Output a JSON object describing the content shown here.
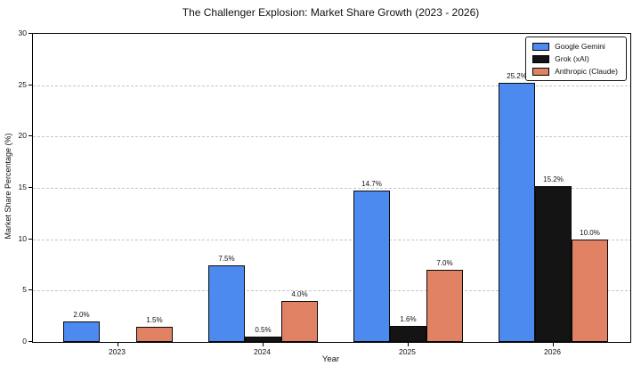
{
  "title": "The Challenger Explosion: Market Share Growth (2023 - 2026)",
  "chart_data": {
    "type": "bar",
    "title": "The Challenger Explosion: Market Share Growth (2023 - 2026)",
    "xlabel": "Year",
    "ylabel": "Market Share Percentage (%)",
    "categories": [
      "2023",
      "2024",
      "2025",
      "2026"
    ],
    "series": [
      {
        "name": "Google Gemini",
        "color": "#4c8af0",
        "values": [
          2.0,
          7.5,
          14.7,
          25.2
        ]
      },
      {
        "name": "Grok (xAI)",
        "color": "#141414",
        "values": [
          0.0,
          0.5,
          1.6,
          15.2
        ]
      },
      {
        "name": "Anthropic (Claude)",
        "color": "#e08263",
        "values": [
          1.5,
          4.0,
          7.0,
          10.0
        ]
      }
    ],
    "bar_labels": {
      "format": "{value:.1f}%",
      "hide_zero": true,
      "visible_labels": [
        "2.0%",
        "1.5%",
        "7.5%",
        "0.5%",
        "4.0%",
        "14.7%",
        "1.6%",
        "7.0%",
        "25.2%",
        "15.2%",
        "10.0%"
      ]
    },
    "ylim": [
      0,
      30
    ],
    "yticks": [
      0,
      5,
      10,
      15,
      20,
      25,
      30
    ],
    "grid": "horizontal dashed",
    "grid_color": "#c6c6c6",
    "bar_edge_color": "#000000",
    "legend_position": "upper right"
  }
}
